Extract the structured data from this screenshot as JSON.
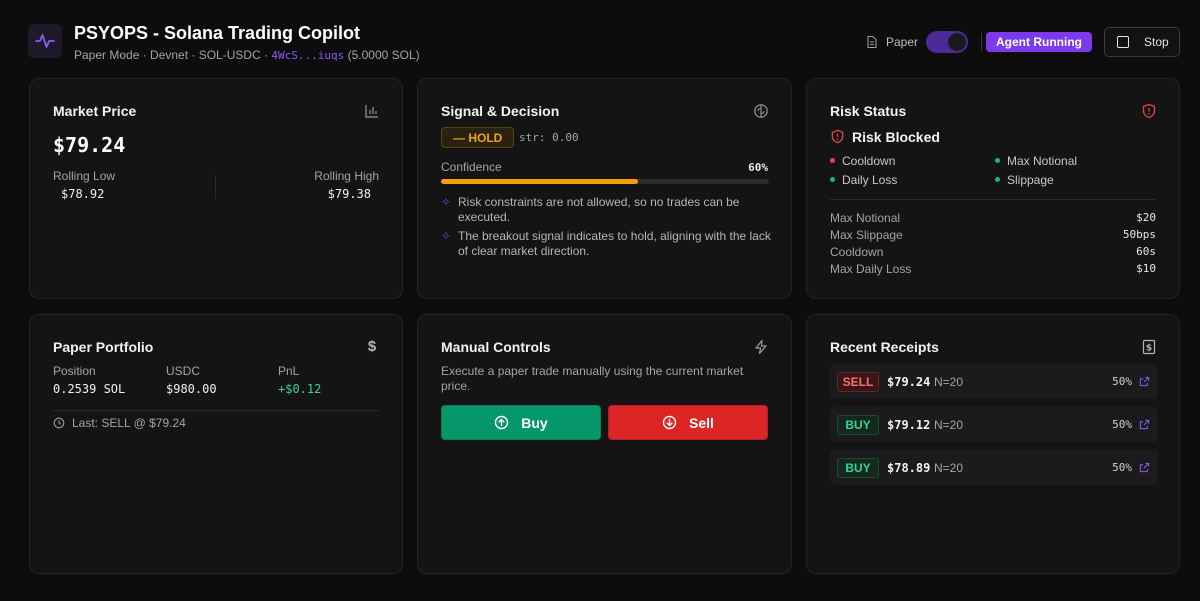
{
  "header": {
    "title": "PSYOPS - Solana Trading Copilot",
    "subtitle_prefix": "Paper Mode · Devnet · SOL-USDC · ",
    "wallet": "4WcS...iuqs",
    "balance": " (5.0000 SOL)",
    "paper_label": "Paper",
    "paper_enabled": true,
    "agent_status": "Agent Running",
    "stop_label": "Stop"
  },
  "market": {
    "title": "Market Price",
    "price": "$79.24",
    "low_label": "Rolling Low",
    "low_value": "$78.92",
    "high_label": "Rolling High",
    "high_value": "$79.38"
  },
  "signal": {
    "title": "Signal & Decision",
    "decision": "— HOLD",
    "strength": "str: 0.00",
    "confidence_label": "Confidence",
    "confidence_text": "60%",
    "confidence_value": 0.6,
    "reasons": [
      "Risk constraints are not allowed, so no trades can be executed.",
      "The breakout signal indicates to hold, aligning with the lack of clear market direction."
    ]
  },
  "risk": {
    "title": "Risk Status",
    "status": "Risk Blocked",
    "checks": [
      {
        "label": "Cooldown",
        "color": "#ef4444"
      },
      {
        "label": "Max Notional",
        "color": "#10b981"
      },
      {
        "label": "Daily Loss",
        "color": "#10b981"
      },
      {
        "label": "Slippage",
        "color": "#10b981"
      }
    ],
    "limits": [
      {
        "label": "Max Notional",
        "value": "$20"
      },
      {
        "label": "Max Slippage",
        "value": "50bps"
      },
      {
        "label": "Cooldown",
        "value": "60s"
      },
      {
        "label": "Max Daily Loss",
        "value": "$10"
      }
    ]
  },
  "portfolio": {
    "title": "Paper Portfolio",
    "position_label": "Position",
    "position_value": "0.2539 SOL",
    "usdc_label": "USDC",
    "usdc_value": "$980.00",
    "pnl_label": "PnL",
    "pnl_value": "+$0.12",
    "last": "Last: SELL @ $79.24"
  },
  "controls": {
    "title": "Manual Controls",
    "description": "Execute a paper trade manually using the current market price.",
    "buy_label": "Buy",
    "sell_label": "Sell"
  },
  "receipts": {
    "title": "Recent Receipts",
    "items": [
      {
        "side": "SELL",
        "price": "$79.24",
        "n": "N=20",
        "confidence": "50%"
      },
      {
        "side": "BUY",
        "price": "$79.12",
        "n": "N=20",
        "confidence": "50%"
      },
      {
        "side": "BUY",
        "price": "$78.89",
        "n": "N=20",
        "confidence": "50%"
      }
    ]
  },
  "colors": {
    "accent": "#7c3aed",
    "hold": "#f59e0b",
    "buy": "#059669",
    "sell": "#dc2626",
    "positive": "#34d399",
    "negative": "#ef4444"
  }
}
